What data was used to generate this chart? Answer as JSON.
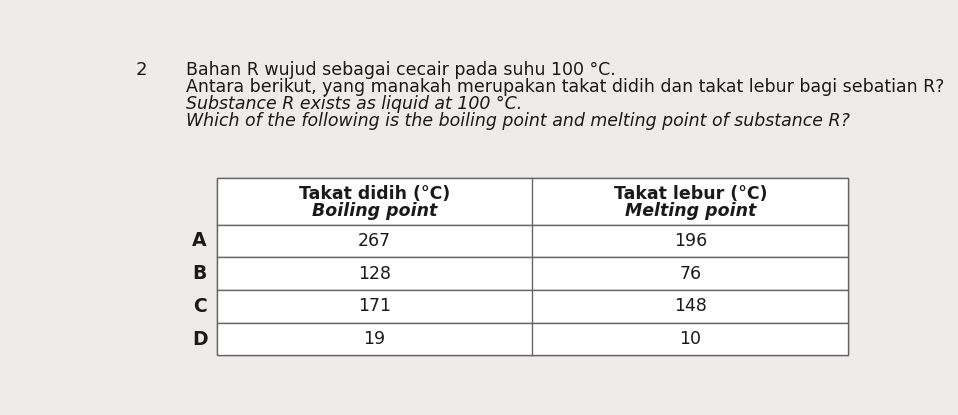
{
  "question_number": "2",
  "question_text_line1": "Bahan R wujud sebagai cecair pada suhu 100 °C.",
  "question_text_line2": "Antara berikut, yang manakah merupakan takat didih dan takat lebur bagi sebatian R?",
  "question_text_line3_italic": "Substance R exists as liquid at 100 °C.",
  "question_text_line4_italic": "Which of the following is the boiling point and melting point of substance R?",
  "col1_header_line1": "Takat didih (°C)",
  "col1_header_line2": "Boiling point",
  "col2_header_line1": "Takat lebur (°C)",
  "col2_header_line2": "Melting point",
  "rows": [
    {
      "label": "A",
      "boiling": "267",
      "melting": "196"
    },
    {
      "label": "B",
      "boiling": "128",
      "melting": "76"
    },
    {
      "label": "C",
      "boiling": "171",
      "melting": "148"
    },
    {
      "label": "D",
      "boiling": "19",
      "melting": "10"
    }
  ],
  "background_color": "#edecea",
  "table_bg": "#ffffff",
  "border_color": "#666666",
  "text_color": "#1a1a1a",
  "font_size_question": 12.5,
  "font_size_table": 12.5,
  "font_size_qnum": 13
}
